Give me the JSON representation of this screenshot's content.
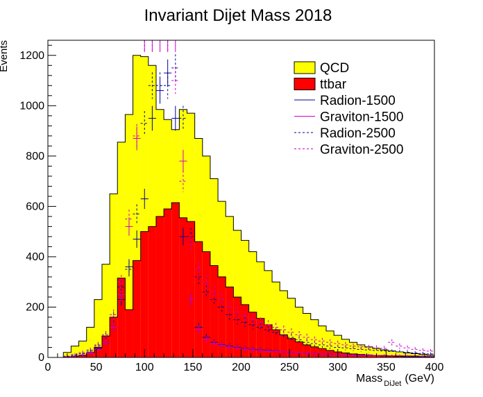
{
  "chart_data": {
    "type": "histogram",
    "title": "Invariant Dijet Mass 2018",
    "xlabel_main": "Mass",
    "xlabel_sub": "DiJet",
    "xlabel_unit": "(GeV)",
    "ylabel": "Events",
    "xlim": [
      0,
      400
    ],
    "ylim": [
      0,
      1260
    ],
    "x_ticks": [
      0,
      50,
      100,
      150,
      200,
      250,
      300,
      350,
      400
    ],
    "y_ticks": [
      0,
      200,
      400,
      600,
      800,
      1000,
      1200
    ],
    "grid": false,
    "legend_position": "top-right",
    "bin_width": 8,
    "bin_edges_start": 0,
    "series": [
      {
        "name": "QCD",
        "style": "filled-stack",
        "color": "#ffff00",
        "values": [
          0,
          0,
          20,
          45,
          65,
          120,
          230,
          370,
          650,
          855,
          965,
          1200,
          1195,
          1160,
          985,
          945,
          905,
          985,
          970,
          870,
          800,
          710,
          620,
          560,
          505,
          465,
          420,
          380,
          345,
          300,
          265,
          235,
          200,
          175,
          150,
          125,
          105,
          88,
          72,
          60,
          50,
          42,
          36,
          30,
          26,
          22,
          18,
          15,
          12,
          10
        ]
      },
      {
        "name": "ttbar",
        "style": "filled",
        "color": "#ff0000",
        "values": [
          0,
          0,
          2,
          4,
          8,
          18,
          40,
          85,
          160,
          315,
          190,
          385,
          500,
          520,
          560,
          590,
          615,
          555,
          540,
          460,
          420,
          365,
          320,
          280,
          240,
          210,
          180,
          155,
          130,
          110,
          90,
          75,
          62,
          50,
          42,
          35,
          28,
          22,
          18,
          14,
          12,
          10,
          8,
          6,
          5,
          4,
          3,
          3,
          2,
          2
        ]
      },
      {
        "name": "Radion-1500",
        "style": "line",
        "color": "#000099",
        "values": [
          0,
          0,
          2,
          5,
          10,
          20,
          35,
          60,
          120,
          230,
          360,
          470,
          630,
          950,
          1060,
          1130,
          950,
          480,
          230,
          120,
          80,
          60,
          50,
          45,
          40,
          36,
          32,
          30,
          28,
          25,
          22,
          20,
          18,
          16,
          15,
          14,
          13,
          12,
          11,
          10,
          9,
          9,
          8,
          8,
          7,
          7,
          6,
          6,
          5,
          5
        ]
      },
      {
        "name": "Graviton-1500",
        "style": "line",
        "color": "#cc00cc",
        "values": [
          0,
          0,
          2,
          5,
          10,
          18,
          32,
          60,
          120,
          250,
          520,
          870,
          1270,
          1270,
          1270,
          1270,
          1270,
          780,
          230,
          110,
          70,
          55,
          48,
          42,
          38,
          34,
          30,
          28,
          26,
          24,
          22,
          20,
          18,
          16,
          15,
          14,
          13,
          12,
          11,
          10,
          9,
          9,
          8,
          8,
          7,
          7,
          6,
          6,
          5,
          5
        ]
      },
      {
        "name": "Radion-2500",
        "style": "dashed",
        "color": "#000099",
        "values": [
          0,
          0,
          3,
          8,
          15,
          25,
          45,
          85,
          160,
          280,
          350,
          570,
          930,
          1080,
          1080,
          1080,
          1150,
          950,
          480,
          320,
          260,
          230,
          200,
          170,
          150,
          140,
          130,
          120,
          110,
          100,
          90,
          80,
          70,
          60,
          55,
          50,
          45,
          40,
          38,
          35,
          32,
          30,
          28,
          26,
          24,
          22,
          20,
          18,
          16,
          14
        ]
      },
      {
        "name": "Graviton-2500",
        "style": "dashed",
        "color": "#cc00cc",
        "values": [
          0,
          0,
          5,
          12,
          20,
          30,
          50,
          90,
          170,
          300,
          550,
          880,
          1270,
          1270,
          1270,
          1270,
          1100,
          700,
          450,
          350,
          300,
          260,
          230,
          200,
          180,
          165,
          150,
          140,
          130,
          120,
          110,
          100,
          90,
          80,
          70,
          65,
          60,
          55,
          50,
          45,
          42,
          40,
          38,
          36,
          60,
          45,
          38,
          32,
          28,
          25
        ]
      }
    ]
  }
}
